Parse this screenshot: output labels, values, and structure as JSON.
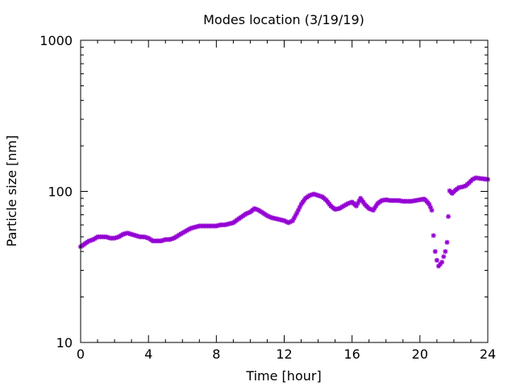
{
  "chart_data": {
    "type": "scatter",
    "title": "Modes location (3/19/19)",
    "xlabel": "Time [hour]",
    "ylabel": "Particle size [nm]",
    "xlim": [
      0,
      24
    ],
    "ylim": [
      10,
      1000
    ],
    "yscale": "log",
    "grid": false,
    "legend": "none",
    "x_ticks": [
      "0",
      "4",
      "8",
      "12",
      "16",
      "20",
      "24"
    ],
    "y_ticks": [
      "10",
      "100",
      "1000"
    ],
    "marker_color": "#9400d3",
    "x": [
      0.0,
      0.25,
      0.5,
      0.75,
      1.0,
      1.25,
      1.5,
      1.75,
      2.0,
      2.25,
      2.5,
      2.75,
      3.0,
      3.25,
      3.5,
      3.75,
      4.0,
      4.25,
      4.5,
      4.75,
      5.0,
      5.25,
      5.5,
      5.75,
      6.0,
      6.25,
      6.5,
      6.75,
      7.0,
      7.25,
      7.5,
      7.75,
      8.0,
      8.25,
      8.5,
      8.75,
      9.0,
      9.25,
      9.5,
      9.75,
      10.0,
      10.25,
      10.5,
      10.75,
      11.0,
      11.25,
      11.5,
      11.75,
      12.0,
      12.25,
      12.5,
      12.75,
      13.0,
      13.25,
      13.5,
      13.75,
      14.0,
      14.25,
      14.5,
      14.75,
      15.0,
      15.25,
      15.5,
      15.75,
      16.0,
      16.25,
      16.5,
      16.75,
      17.0,
      17.25,
      17.5,
      17.75,
      18.0,
      18.25,
      18.5,
      18.75,
      19.0,
      19.25,
      19.5,
      19.75,
      20.0,
      20.25,
      20.4,
      20.55,
      20.7,
      20.8,
      20.9,
      21.0,
      21.1,
      21.2,
      21.3,
      21.4,
      21.5,
      21.6,
      21.75,
      21.9,
      22.1,
      22.3,
      22.5,
      22.7,
      22.9,
      23.1,
      23.3,
      23.5,
      23.75,
      24.0
    ],
    "y": [
      43,
      45,
      47,
      48,
      50,
      50,
      50,
      49,
      49,
      50,
      52,
      53,
      52,
      51,
      50,
      50,
      49,
      47,
      47,
      47,
      48,
      48,
      49,
      51,
      53,
      55,
      57,
      58,
      59,
      59,
      59,
      59,
      59,
      60,
      60,
      61,
      62,
      65,
      68,
      71,
      73,
      77,
      75,
      72,
      69,
      67,
      66,
      65,
      64,
      62,
      64,
      72,
      82,
      90,
      94,
      96,
      94,
      92,
      87,
      80,
      76,
      77,
      80,
      83,
      85,
      80,
      90,
      82,
      77,
      75,
      83,
      87,
      88,
      87,
      87,
      87,
      86,
      86,
      86,
      87,
      88,
      89,
      86,
      82,
      75,
      51,
      40,
      35,
      32,
      33,
      34,
      37,
      40,
      46,
      101,
      97,
      102,
      106,
      107,
      109,
      114,
      120,
      123,
      122,
      121,
      120
    ]
  }
}
